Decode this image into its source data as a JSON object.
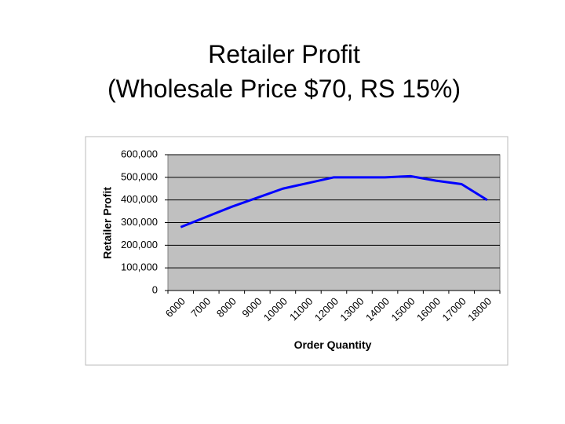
{
  "title_lines": [
    "Retailer Profit",
    "(Wholesale Price $70, RS 15%)"
  ],
  "chart_data": {
    "type": "line",
    "x_label": "Order Quantity",
    "y_label": "Retailer Profit",
    "categories": [
      "6000",
      "7000",
      "8000",
      "9000",
      "10000",
      "11000",
      "12000",
      "13000",
      "14000",
      "15000",
      "16000",
      "17000",
      "18000"
    ],
    "series": [
      {
        "name": "Retailer Profit",
        "color": "#0000ff",
        "values": [
          280000,
          325000,
          370000,
          410000,
          450000,
          475000,
          500000,
          500000,
          500000,
          505000,
          485000,
          470000,
          400000
        ]
      }
    ],
    "ylim": [
      0,
      600000
    ],
    "yticks": [
      0,
      {
        "value": 100000,
        "label": "100,000"
      },
      {
        "value": 200000,
        "label": "200,000"
      },
      {
        "value": 300000,
        "label": "300,000"
      },
      {
        "value": 400000,
        "label": "400,000"
      },
      {
        "value": 500000,
        "label": "500,000"
      },
      {
        "value": 600000,
        "label": "600,000"
      }
    ],
    "grid": true,
    "plot_background": "#c0c0c0"
  }
}
